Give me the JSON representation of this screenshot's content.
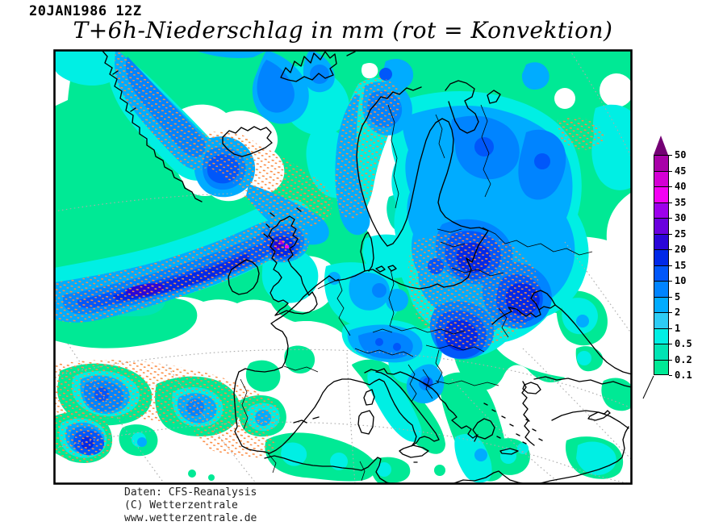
{
  "header": {
    "timestamp": "20JAN1986 12Z",
    "title": "T+6h-Niederschlag in mm (rot = Konvektion)"
  },
  "footer": {
    "line1": "Daten: CFS-Reanalysis",
    "line2": "(C) Wetterzentrale",
    "line3": "www.wetterzentrale.de"
  },
  "legend": {
    "boundary_labels_top_to_bottom": [
      "50",
      "45",
      "40",
      "35",
      "30",
      "25",
      "20",
      "15",
      "10",
      "5",
      "2",
      "1",
      "0.5",
      "0.2",
      "0.1"
    ],
    "arrow_color": "#740074",
    "segments_top_to_bottom": [
      {
        "range": "45-50",
        "color": "#A800A8"
      },
      {
        "range": "40-45",
        "color": "#D400D4"
      },
      {
        "range": "35-40",
        "color": "#F400F4"
      },
      {
        "range": "30-35",
        "color": "#9D00EC"
      },
      {
        "range": "25-30",
        "color": "#6A00DE"
      },
      {
        "range": "20-25",
        "color": "#2A06D8"
      },
      {
        "range": "15-20",
        "color": "#0029E8"
      },
      {
        "range": "10-15",
        "color": "#0057FA"
      },
      {
        "range": "5-10",
        "color": "#0084FF"
      },
      {
        "range": "2-5",
        "color": "#00ACFF"
      },
      {
        "range": "1-2",
        "color": "#2ECCF5"
      },
      {
        "range": "0.5-1",
        "color": "#00EFE4"
      },
      {
        "range": "0.2-0.5",
        "color": "#00E4B4"
      },
      {
        "range": "0.1-0.2",
        "color": "#00E995"
      }
    ]
  },
  "map": {
    "region": "Europe and North Atlantic",
    "background": "#FFFFFF",
    "coastline_color": "#000000",
    "graticule_color": "#ABABAB",
    "convection_stipple_color": "#FB8C44",
    "frame_color": "#000000"
  },
  "chart_data": {
    "type": "heatmap",
    "title": "T+6h-Niederschlag in mm (rot = Konvektion)",
    "valid_time": "20JAN1986 12Z",
    "variable": "6-hour accumulated precipitation",
    "unit": "mm",
    "levels_mm": [
      0.1,
      0.2,
      0.5,
      1,
      2,
      5,
      10,
      15,
      20,
      25,
      30,
      35,
      40,
      45,
      50
    ],
    "colors_low_to_high": [
      "#00E995",
      "#00E4B4",
      "#00EFE4",
      "#2ECCF5",
      "#00ACFF",
      "#0084FF",
      "#0057FA",
      "#0029E8",
      "#2A06D8",
      "#6A00DE",
      "#9D00EC",
      "#F400F4",
      "#D400D4",
      "#A800A8"
    ],
    "above_max_color": "#740074",
    "convection_note": "orange-red stippling marks convective precipitation (rot = Konvektion)",
    "notable_features": [
      "Broad light precipitation (0.1-2 mm) over the North Atlantic, Norwegian Sea and northeastern Europe",
      "Intense SW-NE frontal band (10-20 mm, locally 25-40 mm) from the mid-Atlantic across Ireland and Scotland",
      "Heavy precipitation band along the Greenland coast and south of Iceland (5-15 mm)",
      "Extensive 5-20 mm area from the Baltic states across Belarus and Ukraine toward the Black Sea",
      "Convective clusters (5-20 mm) west of Iberia and Morocco with red stippling",
      "Mostly dry: Iberia, western Mediterranean, interior Scandinavia, Black Sea and southeastern corner"
    ]
  }
}
